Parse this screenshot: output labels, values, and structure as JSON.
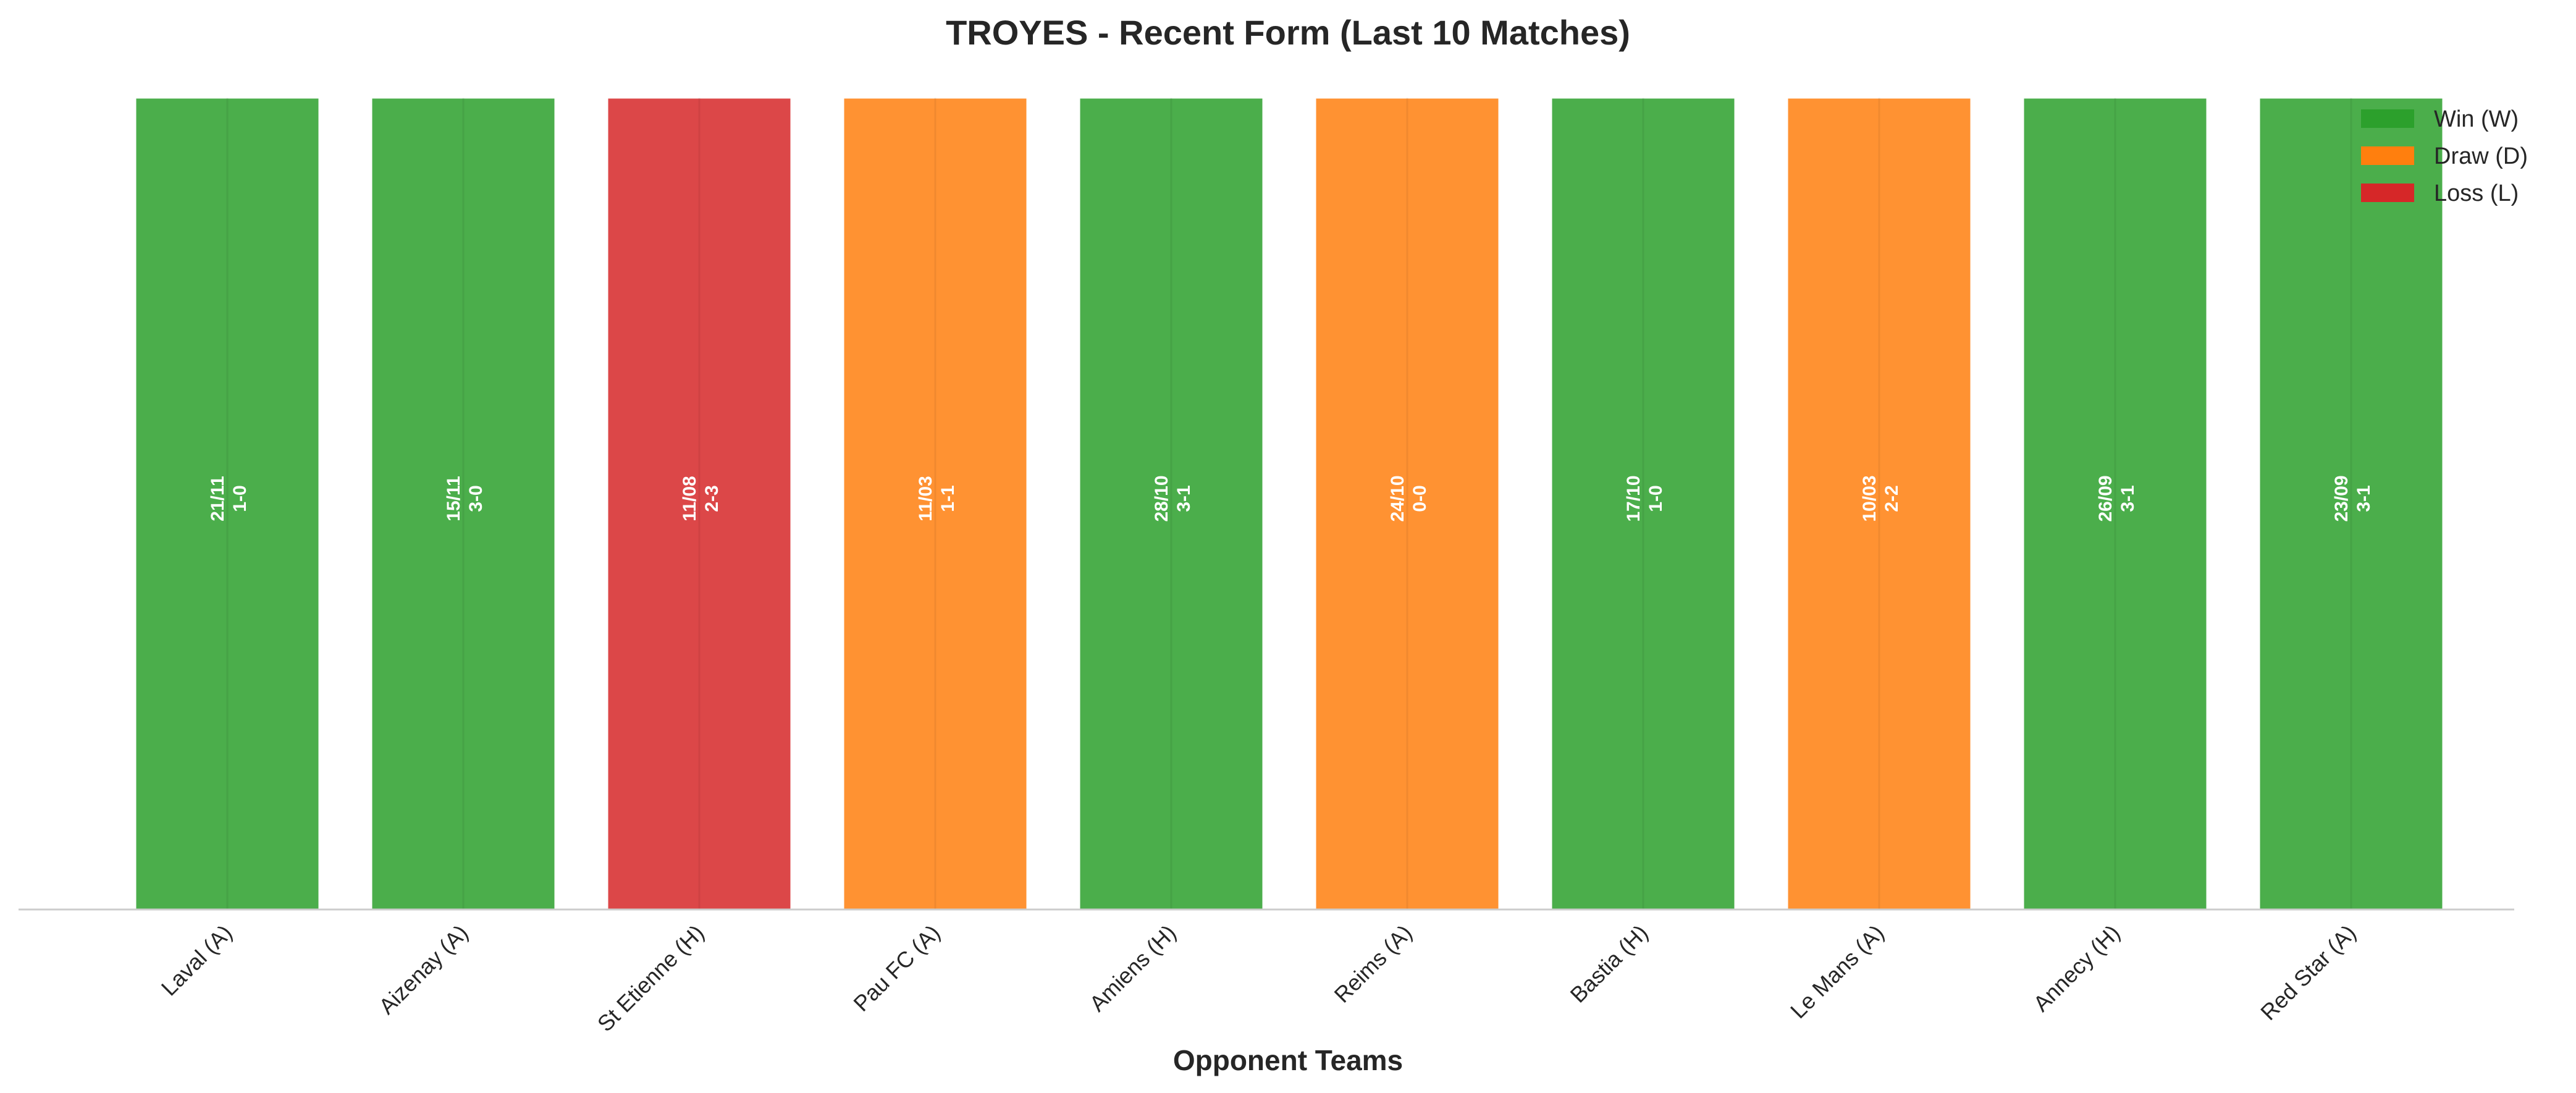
{
  "chart_data": {
    "type": "bar",
    "title": "TROYES - Recent Form (Last 10 Matches)",
    "xlabel": "Opponent Teams",
    "ylabel": "",
    "ylim": [
      0,
      1
    ],
    "grid": false,
    "legend_position": "top-right",
    "categories": [
      "Laval (A)",
      "Aizenay (A)",
      "St Etienne (H)",
      "Pau FC (A)",
      "Amiens (H)",
      "Reims (A)",
      "Bastia (H)",
      "Le Mans (A)",
      "Annecy (H)",
      "Red Star (A)"
    ],
    "values": [
      1,
      1,
      1,
      1,
      1,
      1,
      1,
      1,
      1,
      1
    ],
    "results": [
      "W",
      "W",
      "L",
      "D",
      "W",
      "D",
      "W",
      "D",
      "W",
      "W"
    ],
    "dates": [
      "21/11",
      "15/11",
      "11/08",
      "11/03",
      "28/10",
      "24/10",
      "17/10",
      "10/03",
      "26/09",
      "23/09"
    ],
    "scores": [
      "1-0",
      "3-0",
      "2-3",
      "1-1",
      "3-1",
      "0-0",
      "1-0",
      "2-2",
      "3-1",
      "3-1"
    ],
    "legend": [
      {
        "key": "W",
        "label": "Win (W)",
        "color": "#2ca02c"
      },
      {
        "key": "D",
        "label": "Draw (D)",
        "color": "#ff7f0e"
      },
      {
        "key": "L",
        "label": "Loss (L)",
        "color": "#d62728"
      }
    ]
  }
}
